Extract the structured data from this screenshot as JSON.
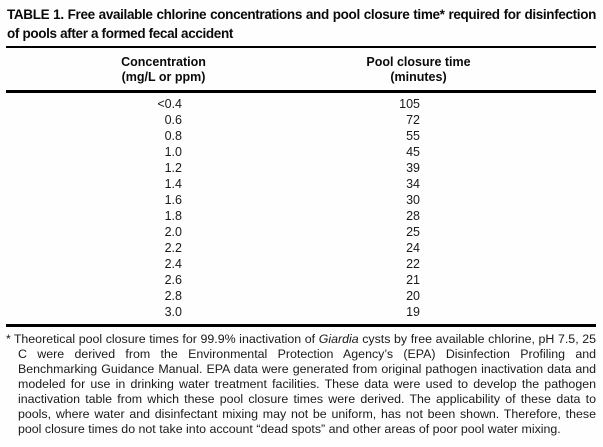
{
  "page": {
    "background": "#fefefe",
    "text_color": "#111111",
    "rule_color": "#000000"
  },
  "table": {
    "title": "TABLE 1. Free available chlorine concentrations and pool closure time* required for disinfection of pools after a formed fecal accident",
    "columns": [
      {
        "name": "Concentration",
        "unit": "(mg/L or ppm)"
      },
      {
        "name": "Pool closure time",
        "unit": "(minutes)"
      }
    ],
    "rows": [
      {
        "concentration": "<0.4",
        "minutes": "105"
      },
      {
        "concentration": "0.6",
        "minutes": "72"
      },
      {
        "concentration": "0.8",
        "minutes": "55"
      },
      {
        "concentration": "1.0",
        "minutes": "45"
      },
      {
        "concentration": "1.2",
        "minutes": "39"
      },
      {
        "concentration": "1.4",
        "minutes": "34"
      },
      {
        "concentration": "1.6",
        "minutes": "30"
      },
      {
        "concentration": "1.8",
        "minutes": "28"
      },
      {
        "concentration": "2.0",
        "minutes": "25"
      },
      {
        "concentration": "2.2",
        "minutes": "24"
      },
      {
        "concentration": "2.4",
        "minutes": "22"
      },
      {
        "concentration": "2.6",
        "minutes": "21"
      },
      {
        "concentration": "2.8",
        "minutes": "20"
      },
      {
        "concentration": "3.0",
        "minutes": "19"
      }
    ]
  },
  "footnote": {
    "marker": "*",
    "text_before_italic": "Theoretical pool closure times for 99.9% inactivation of ",
    "italic_term": "Giardia",
    "text_after_italic": " cysts by free available chlorine, pH 7.5, 25 C were derived from the Environmental Protection Agency’s (EPA) Disinfection Profiling and Benchmarking Guidance Manual. EPA data were generated from original pathogen inactivation data and modeled for use in drinking water treatment facilities. These data were used to develop the pathogen inactivation table from which these pool closure times were derived. The applicability of these data to pools, where water and disinfectant mixing may not be uniform, has not been shown. Therefore, these pool closure times do not take into account “dead spots” and other areas of poor pool water mixing."
  }
}
